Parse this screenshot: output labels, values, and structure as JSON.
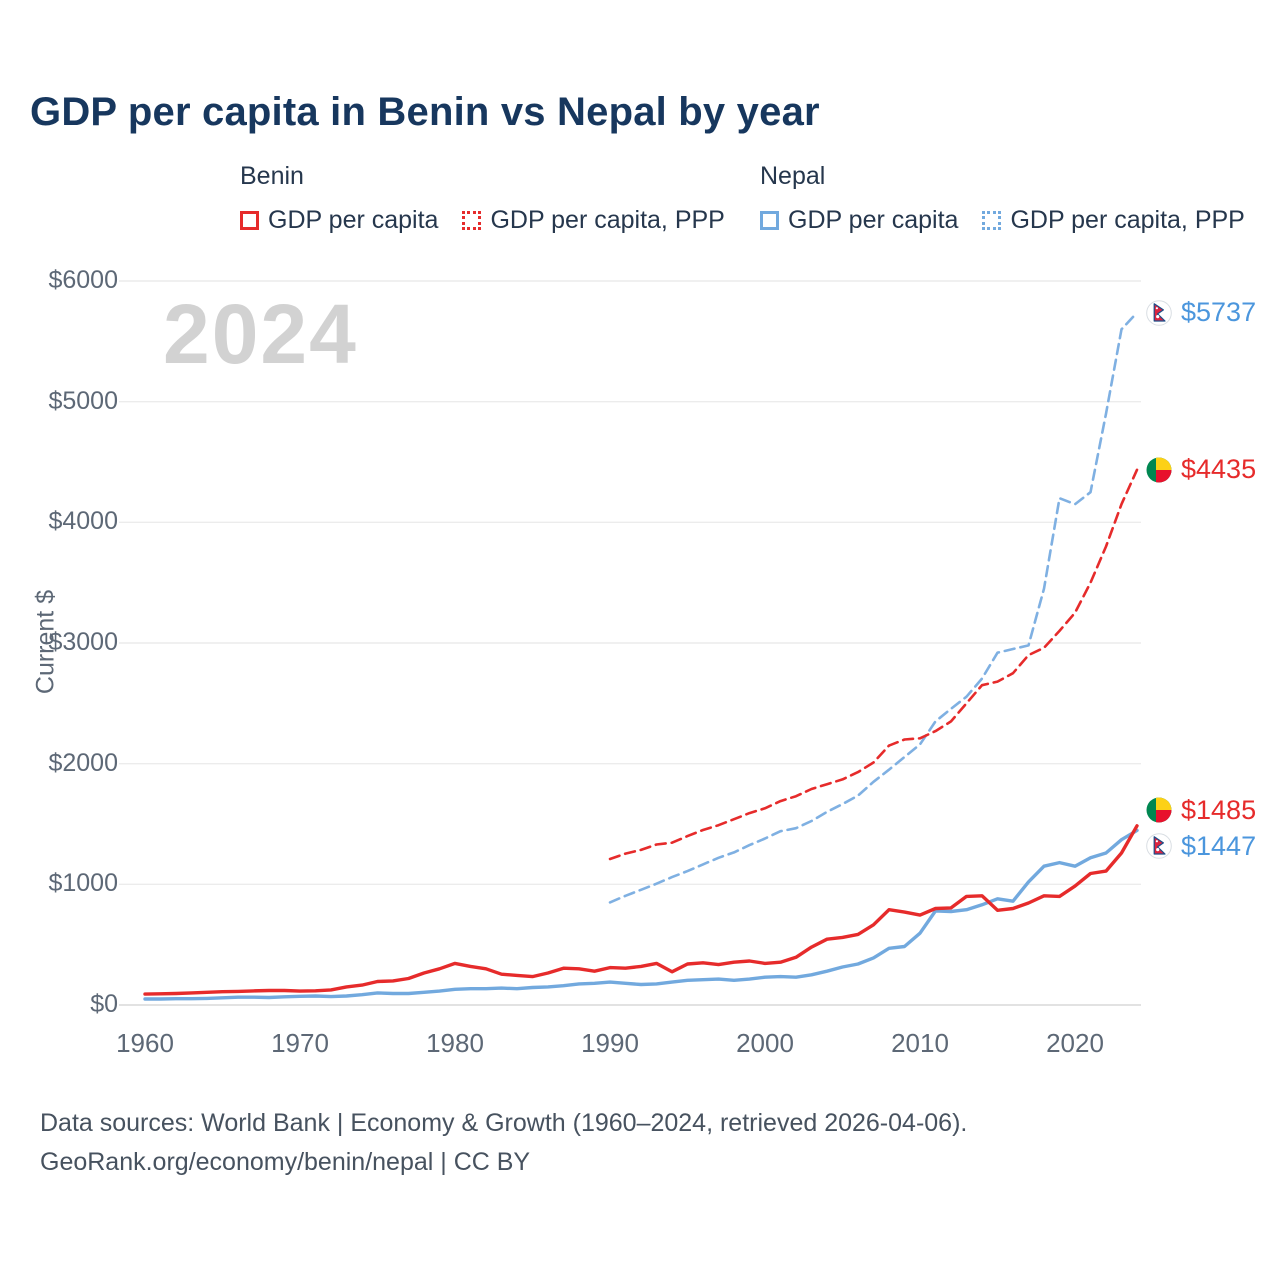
{
  "title": "GDP per capita in Benin vs Nepal by year",
  "watermark": "2024",
  "legend": {
    "groups": [
      {
        "name": "Benin",
        "items": [
          {
            "label": "GDP per capita",
            "style": "solid",
            "color": "#e62b2b"
          },
          {
            "label": "GDP per capita, PPP",
            "style": "dashed",
            "color": "#e62b2b"
          }
        ]
      },
      {
        "name": "Nepal",
        "items": [
          {
            "label": "GDP per capita",
            "style": "solid",
            "color": "#72a9de"
          },
          {
            "label": "GDP per capita, PPP",
            "style": "dashed",
            "color": "#72a9de"
          }
        ]
      }
    ]
  },
  "footer": {
    "line1": "Data sources: World Bank | Economy & Growth (1960–2024, retrieved 2026-04-06).",
    "line2": "GeoRank.org/economy/benin/nepal | CC BY"
  },
  "chart_data": {
    "type": "line",
    "title": "GDP per capita in Benin vs Nepal by year",
    "xlabel": "",
    "ylabel": "Current $",
    "xlim": [
      1960,
      2024
    ],
    "ylim": [
      0,
      6000
    ],
    "grid": true,
    "legend_position": "top",
    "x_ticks": [
      1960,
      1970,
      1980,
      1990,
      2000,
      2010,
      2020
    ],
    "y_ticks": [
      0,
      1000,
      2000,
      3000,
      4000,
      5000,
      6000
    ],
    "series": [
      {
        "id": "nepal-gdp-per-capita-ppp",
        "name": "Nepal GDP per capita, PPP",
        "flag": "nepal",
        "line": "dashed",
        "color": "#7fb0e2",
        "label_color": "#4b96dd",
        "end_label": "$5737",
        "x": [
          1990,
          1991,
          1992,
          1993,
          1994,
          1995,
          1996,
          1997,
          1998,
          1999,
          2000,
          2001,
          2002,
          2003,
          2004,
          2005,
          2006,
          2007,
          2008,
          2009,
          2010,
          2011,
          2012,
          2013,
          2014,
          2015,
          2016,
          2017,
          2018,
          2019,
          2020,
          2021,
          2022,
          2023,
          2024
        ],
        "values": [
          850,
          905,
          955,
          1005,
          1060,
          1110,
          1165,
          1220,
          1265,
          1325,
          1380,
          1440,
          1465,
          1525,
          1600,
          1665,
          1735,
          1850,
          1950,
          2055,
          2160,
          2350,
          2455,
          2555,
          2705,
          2920,
          2950,
          2980,
          3450,
          4200,
          4150,
          4250,
          4900,
          5600,
          5737
        ]
      },
      {
        "id": "benin-gdp-per-capita-ppp",
        "name": "Benin GDP per capita, PPP",
        "flag": "benin",
        "line": "dashed",
        "color": "#e62b2b",
        "label_color": "#e62b2b",
        "end_label": "$4435",
        "x": [
          1990,
          1991,
          1992,
          1993,
          1994,
          1995,
          1996,
          1997,
          1998,
          1999,
          2000,
          2001,
          2002,
          2003,
          2004,
          2005,
          2006,
          2007,
          2008,
          2009,
          2010,
          2011,
          2012,
          2013,
          2014,
          2015,
          2016,
          2017,
          2018,
          2019,
          2020,
          2021,
          2022,
          2023,
          2024
        ],
        "values": [
          1210,
          1255,
          1285,
          1330,
          1345,
          1400,
          1450,
          1490,
          1540,
          1590,
          1630,
          1690,
          1730,
          1790,
          1830,
          1870,
          1930,
          2010,
          2150,
          2200,
          2210,
          2270,
          2350,
          2500,
          2650,
          2680,
          2750,
          2900,
          2960,
          3100,
          3250,
          3500,
          3800,
          4150,
          4435
        ]
      },
      {
        "id": "nepal-gdp-per-capita",
        "name": "Nepal GDP per capita",
        "flag": "nepal",
        "line": "solid",
        "color": "#72a9de",
        "label_color": "#4b96dd",
        "end_label": "$1447",
        "x": [
          1960,
          1961,
          1962,
          1963,
          1964,
          1965,
          1966,
          1967,
          1968,
          1969,
          1970,
          1971,
          1972,
          1973,
          1974,
          1975,
          1976,
          1977,
          1978,
          1979,
          1980,
          1981,
          1982,
          1983,
          1984,
          1985,
          1986,
          1987,
          1988,
          1989,
          1990,
          1991,
          1992,
          1993,
          1994,
          1995,
          1996,
          1997,
          1998,
          1999,
          2000,
          2001,
          2002,
          2003,
          2004,
          2005,
          2006,
          2007,
          2008,
          2009,
          2010,
          2011,
          2012,
          2013,
          2014,
          2015,
          2016,
          2017,
          2018,
          2019,
          2020,
          2021,
          2022,
          2023,
          2024
        ],
        "values": [
          50,
          50,
          52,
          52,
          55,
          60,
          65,
          65,
          62,
          68,
          72,
          75,
          70,
          75,
          85,
          100,
          95,
          95,
          105,
          115,
          130,
          135,
          135,
          140,
          135,
          145,
          150,
          160,
          175,
          180,
          190,
          180,
          170,
          175,
          190,
          205,
          210,
          215,
          205,
          215,
          230,
          235,
          230,
          250,
          280,
          315,
          340,
          390,
          470,
          485,
          595,
          780,
          775,
          790,
          830,
          880,
          860,
          1020,
          1150,
          1180,
          1150,
          1220,
          1260,
          1370,
          1447
        ]
      },
      {
        "id": "benin-gdp-per-capita",
        "name": "Benin GDP per capita",
        "flag": "benin",
        "line": "solid",
        "color": "#e62b2b",
        "label_color": "#e62b2b",
        "end_label": "$1485",
        "x": [
          1960,
          1961,
          1962,
          1963,
          1964,
          1965,
          1966,
          1967,
          1968,
          1969,
          1970,
          1971,
          1972,
          1973,
          1974,
          1975,
          1976,
          1977,
          1978,
          1979,
          1980,
          1981,
          1982,
          1983,
          1984,
          1985,
          1986,
          1987,
          1988,
          1989,
          1990,
          1991,
          1992,
          1993,
          1994,
          1995,
          1996,
          1997,
          1998,
          1999,
          2000,
          2001,
          2002,
          2003,
          2004,
          2005,
          2006,
          2007,
          2008,
          2009,
          2010,
          2011,
          2012,
          2013,
          2014,
          2015,
          2016,
          2017,
          2018,
          2019,
          2020,
          2021,
          2022,
          2023,
          2024
        ],
        "values": [
          90,
          93,
          95,
          100,
          105,
          110,
          113,
          117,
          120,
          120,
          115,
          118,
          125,
          150,
          165,
          195,
          200,
          220,
          265,
          300,
          345,
          320,
          300,
          255,
          245,
          235,
          265,
          305,
          300,
          280,
          310,
          305,
          320,
          345,
          275,
          340,
          350,
          335,
          355,
          365,
          345,
          355,
          395,
          480,
          545,
          560,
          585,
          665,
          790,
          770,
          745,
          800,
          805,
          900,
          905,
          785,
          800,
          845,
          905,
          900,
          985,
          1090,
          1110,
          1260,
          1485
        ]
      }
    ]
  }
}
